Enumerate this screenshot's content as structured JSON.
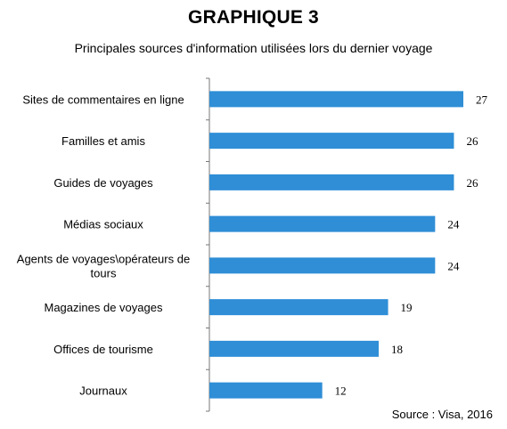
{
  "chart_data": {
    "type": "bar",
    "orientation": "horizontal",
    "title": "GRAPHIQUE 3",
    "subtitle": "Principales sources d'information utilisées lors du dernier voyage",
    "source": "Source : Visa, 2016",
    "categories": [
      "Sites de commentaires en ligne",
      "Familles et amis",
      "Guides de voyages",
      "Médias sociaux",
      "Agents de voyages\\opérateurs de tours",
      "Magazines de voyages",
      "Offices de tourisme",
      "Journaux"
    ],
    "values": [
      27,
      26,
      26,
      24,
      24,
      19,
      18,
      12
    ],
    "xlim": [
      0,
      27
    ],
    "bar_color": "#2f8ed6",
    "grid": false,
    "legend": "none"
  }
}
